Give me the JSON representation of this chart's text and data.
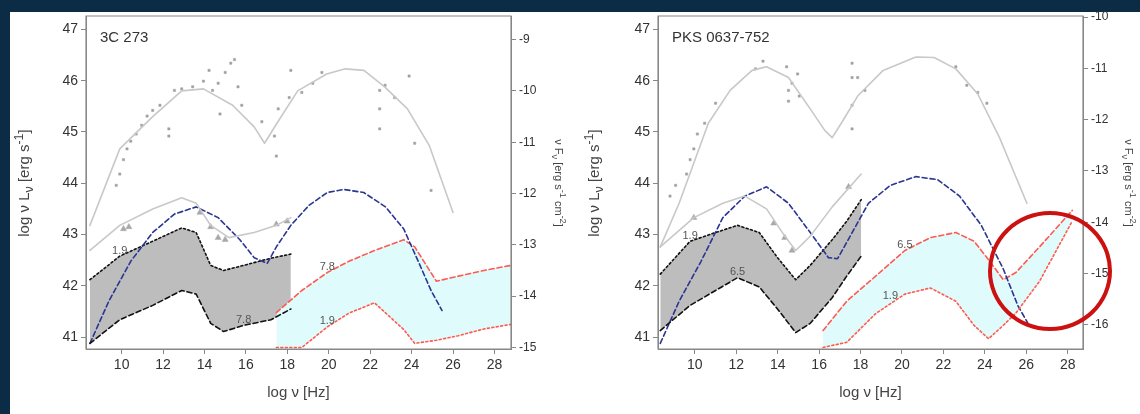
{
  "chart_data": [
    {
      "type": "line",
      "title": "3C 273",
      "xlabel": "log ν [Hz]",
      "ylabel": "log ν L$_{ν}$ [erg s$^{-1}$]",
      "y2label": "ν F$_{ν}$ [erg s$^{-1}$ cm$^{-2}$]",
      "xlim": [
        8.28,
        28.8
      ],
      "xticks": [
        10,
        12,
        14,
        16,
        18,
        20,
        22,
        24,
        26,
        28
      ],
      "ylim": [
        40.77,
        47.26
      ],
      "yticks": [
        41,
        42,
        43,
        44,
        45,
        46,
        47
      ],
      "y2lim": [
        -15.03,
        -8.54
      ],
      "y2ticks": [
        -9,
        -10,
        -11,
        -12,
        -13,
        -14,
        -15
      ],
      "series": [
        {
          "type": "area",
          "color": "#e0fbfb",
          "line_style": "dashed",
          "x": [
            17.47,
            18.7,
            19.93,
            20.98,
            22.21,
            23.62,
            24.15,
            25.2,
            26.26,
            27.49,
            28.8
          ],
          "values": [
            41.48,
            41.91,
            42.26,
            42.48,
            42.69,
            42.9,
            42.76,
            42.09,
            42.19,
            42.3,
            42.4
          ]
        },
        {
          "type": "line",
          "color": "#ff5a50",
          "marker": "none",
          "line_style": "dotted",
          "x": [
            17.47,
            18.7,
            19.93,
            20.98,
            22.21,
            23.62,
            24.15,
            25.2,
            26.26,
            27.49,
            28.8
          ],
          "values": [
            40.8,
            40.8,
            41.2,
            41.47,
            41.67,
            41.15,
            40.88,
            40.94,
            41.03,
            41.16,
            41.25
          ]
        },
        {
          "type": "area",
          "color": "#bdbdbd",
          "line_style": "dotted",
          "x": [
            8.47,
            9.91,
            11.5,
            12.9,
            13.6,
            14.3,
            14.92,
            15.89,
            17.21,
            18.17
          ],
          "values": [
            42.12,
            42.58,
            42.87,
            43.13,
            43.04,
            42.4,
            42.3,
            42.4,
            42.54,
            42.62
          ]
        },
        {
          "type": "line",
          "color": "#111111",
          "marker": "none",
          "line_style": "dashed",
          "x": [
            8.47,
            9.91,
            11.5,
            12.9,
            13.6,
            14.3,
            14.92,
            15.89,
            17.21,
            18.17
          ],
          "values": [
            40.88,
            41.34,
            41.62,
            41.91,
            41.84,
            41.27,
            41.11,
            41.23,
            41.34,
            41.55
          ]
        },
        {
          "type": "line",
          "color": "#c8c8c8",
          "marker": "none",
          "line_style": "solid",
          "x": [
            8.47,
            9.91,
            11.5,
            12.9,
            13.95,
            15.36,
            16.4,
            16.9,
            17.5,
            18.5,
            19.9,
            20.8,
            21.7,
            22.7,
            23.8,
            24.85,
            26.0
          ],
          "values": [
            43.18,
            44.67,
            45.3,
            45.8,
            45.84,
            45.52,
            45.1,
            44.78,
            45.17,
            45.8,
            46.13,
            46.23,
            46.2,
            45.88,
            45.45,
            44.74,
            43.43
          ]
        },
        {
          "type": "scatter",
          "color": "#a0a0a0",
          "marker": "square",
          "x": [
            9.74,
            9.91,
            10.09,
            10.26,
            10.44,
            10.7,
            10.97,
            11.23,
            11.5,
            11.85,
            12.28,
            12.28,
            12.55,
            12.9,
            13.43,
            13.95,
            14.22,
            14.39,
            14.66,
            14.75,
            15.0,
            15.27,
            15.45,
            15.62,
            15.8,
            16.77,
            17.38,
            17.47,
            17.56,
            18.09,
            18.17,
            18.7,
            19.23,
            19.67,
            22.46,
            22.46,
            22.46,
            22.72,
            23.18,
            23.88,
            24.15,
            24.94
          ],
          "values": [
            43.96,
            44.18,
            44.46,
            44.67,
            44.82,
            44.96,
            45.13,
            45.31,
            45.42,
            45.52,
            45.06,
            44.92,
            45.81,
            45.84,
            45.88,
            45.99,
            46.2,
            45.81,
            45.95,
            45.35,
            46.16,
            46.34,
            46.41,
            45.88,
            45.52,
            45.2,
            44.92,
            44.53,
            45.45,
            45.67,
            46.2,
            45.77,
            45.95,
            46.16,
            45.81,
            45.45,
            45.06,
            45.91,
            45.67,
            46.09,
            44.78,
            43.86
          ]
        },
        {
          "type": "line",
          "color": "#c8c8c8",
          "marker": "none",
          "line_style": "solid",
          "x": [
            8.47,
            9.91,
            11.5,
            12.9,
            13.6,
            14.3,
            15.18,
            16.4,
            17.47,
            18.17
          ],
          "values": [
            42.69,
            43.18,
            43.5,
            43.72,
            43.61,
            43.18,
            42.94,
            43.04,
            43.18,
            43.33
          ]
        },
        {
          "type": "scatter",
          "color": "#a8a8a8",
          "marker": "triangle",
          "x": [
            10.09,
            10.35,
            13.78,
            14.3,
            14.66,
            15.0,
            17.47,
            17.99
          ],
          "values": [
            43.11,
            43.15,
            43.43,
            43.15,
            42.94,
            42.9,
            43.2,
            43.26
          ]
        },
        {
          "type": "line",
          "color": "#2a3590",
          "marker": "none",
          "line_style": "dashed",
          "x": [
            8.47,
            9.38,
            10.44,
            11.5,
            12.55,
            13.6,
            14.66,
            15.71,
            16.4,
            17.03,
            17.47,
            18.17,
            19.05,
            19.93,
            20.72,
            21.69,
            22.74,
            23.62,
            24.32,
            24.94,
            25.47
          ],
          "values": [
            40.88,
            41.7,
            42.48,
            43.04,
            43.4,
            43.54,
            43.33,
            42.9,
            42.55,
            42.44,
            42.76,
            43.18,
            43.57,
            43.82,
            43.88,
            43.82,
            43.54,
            43.11,
            42.48,
            41.91,
            41.52
          ]
        }
      ],
      "annotations": [
        {
          "text": "1.9",
          "x": 9.91,
          "y": 42.58
        },
        {
          "text": "7.8",
          "x": 15.89,
          "y": 41.23
        },
        {
          "text": "7.8",
          "x": 19.93,
          "y": 42.26
        },
        {
          "text": "1.9",
          "x": 19.93,
          "y": 41.2
        }
      ]
    },
    {
      "type": "line",
      "title": "PKS 0637-752",
      "xlabel": "log ν [Hz]",
      "ylabel": "log ν L$_{ν}$ [erg s$^{-1}$]",
      "y2label": "ν F$_{ν}$ [erg s$^{-1}$ cm$^{-2}$]",
      "xlim": [
        8.22,
        28.74
      ],
      "xticks": [
        10,
        12,
        14,
        16,
        18,
        20,
        22,
        24,
        26,
        28
      ],
      "ylim": [
        40.77,
        47.26
      ],
      "yticks": [
        41,
        42,
        43,
        44,
        45,
        46,
        47
      ],
      "y2lim": [
        -16.47,
        -9.98
      ],
      "y2ticks": [
        -10,
        -11,
        -12,
        -13,
        -14,
        -15,
        -16
      ],
      "series": [
        {
          "type": "area",
          "color": "#e0fbfb",
          "line_style": "dashed",
          "x": [
            16.19,
            17.33,
            18.73,
            20.14,
            21.37,
            22.6,
            23.48,
            24.18,
            24.89,
            25.5,
            26.64,
            28.22
          ],
          "values": [
            41.13,
            41.7,
            42.19,
            42.69,
            42.94,
            43.04,
            42.87,
            42.51,
            42.12,
            42.26,
            42.76,
            43.47
          ]
        },
        {
          "type": "line",
          "color": "#ff5a50",
          "marker": "none",
          "line_style": "dotted",
          "x": [
            16.19,
            17.33,
            18.73,
            20.14,
            21.37,
            22.6,
            23.48,
            24.18,
            24.89,
            25.5,
            26.64,
            28.22
          ],
          "values": [
            40.8,
            40.9,
            41.46,
            41.84,
            41.96,
            41.7,
            41.23,
            40.97,
            41.23,
            41.47,
            42.09,
            43.26
          ]
        },
        {
          "type": "area",
          "color": "#bdbdbd",
          "line_style": "dotted",
          "x": [
            8.33,
            9.77,
            11.0,
            12.06,
            13.11,
            13.99,
            14.87,
            15.57,
            16.63,
            17.33,
            18.03
          ],
          "values": [
            42.23,
            42.87,
            43.04,
            43.18,
            43.04,
            42.55,
            42.12,
            42.4,
            42.9,
            43.26,
            43.68
          ]
        },
        {
          "type": "line",
          "color": "#111111",
          "marker": "none",
          "line_style": "dashed",
          "x": [
            8.33,
            9.77,
            11.0,
            12.06,
            13.11,
            13.99,
            14.87,
            15.57,
            16.63,
            17.33,
            18.03
          ],
          "values": [
            41.13,
            41.62,
            41.91,
            42.16,
            41.98,
            41.55,
            41.09,
            41.27,
            41.77,
            42.19,
            42.58
          ]
        },
        {
          "type": "line",
          "color": "#c8c8c8",
          "marker": "none",
          "line_style": "solid",
          "x": [
            8.33,
            9.24,
            10.65,
            11.7,
            12.76,
            13.46,
            14.52,
            15.57,
            16.27,
            16.63,
            17.07,
            17.86,
            19.09,
            20.67,
            21.55,
            22.6,
            23.66,
            24.71,
            26.03
          ],
          "values": [
            42.76,
            43.61,
            45.17,
            45.81,
            46.2,
            46.27,
            46.06,
            45.45,
            45.03,
            44.89,
            45.17,
            45.7,
            46.2,
            46.46,
            46.45,
            46.23,
            45.74,
            44.89,
            43.61
          ]
        },
        {
          "type": "scatter",
          "color": "#a0a0a0",
          "marker": "square",
          "x": [
            8.8,
            9.07,
            9.6,
            9.77,
            9.95,
            10.12,
            10.47,
            11.0,
            12.93,
            13.29,
            14.43,
            14.52,
            14.52,
            14.69,
            14.96,
            15.04,
            17.59,
            17.59,
            17.59,
            17.59,
            17.86,
            18.21,
            22.6,
            23.13,
            23.66,
            24.1
          ],
          "values": [
            43.75,
            43.96,
            44.18,
            44.46,
            44.67,
            44.96,
            45.17,
            45.56,
            46.23,
            46.38,
            46.27,
            45.81,
            45.6,
            45.95,
            46.13,
            45.7,
            46.34,
            46.06,
            45.52,
            45.06,
            46.06,
            45.81,
            46.27,
            45.91,
            45.77,
            45.56
          ]
        },
        {
          "type": "line",
          "color": "#c8c8c8",
          "marker": "none",
          "line_style": "solid",
          "x": [
            8.33,
            9.95,
            11.35,
            12.41,
            13.46,
            14.34,
            14.87,
            15.57,
            16.63,
            18.03
          ],
          "values": [
            42.76,
            43.33,
            43.61,
            43.75,
            43.5,
            42.97,
            42.69,
            42.97,
            43.54,
            44.18
          ]
        },
        {
          "type": "scatter",
          "color": "#a8a8a8",
          "marker": "triangle",
          "x": [
            9.95,
            13.81,
            14.34,
            14.69,
            17.42
          ],
          "values": [
            43.33,
            43.22,
            42.94,
            42.69,
            43.93
          ]
        },
        {
          "type": "line",
          "color": "#2a3590",
          "marker": "none",
          "line_style": "dashed",
          "x": [
            8.33,
            9.24,
            10.3,
            11.35,
            12.41,
            13.46,
            14.52,
            15.57,
            16.45,
            16.89,
            17.5,
            18.38,
            19.44,
            20.67,
            21.72,
            22.78,
            23.83,
            24.89,
            25.59,
            26.08
          ],
          "values": [
            40.88,
            41.7,
            42.48,
            43.33,
            43.75,
            43.93,
            43.61,
            43.04,
            42.55,
            42.53,
            42.97,
            43.61,
            43.96,
            44.13,
            44.07,
            43.75,
            43.18,
            42.33,
            41.62,
            41.27
          ]
        }
      ],
      "annotations": [
        {
          "text": "1.9",
          "x": 9.77,
          "y": 42.87
        },
        {
          "text": "6.5",
          "x": 12.06,
          "y": 42.16
        },
        {
          "text": "6.5",
          "x": 20.14,
          "y": 42.69
        },
        {
          "text": "1.9",
          "x": 19.44,
          "y": 41.7
        }
      ]
    }
  ]
}
